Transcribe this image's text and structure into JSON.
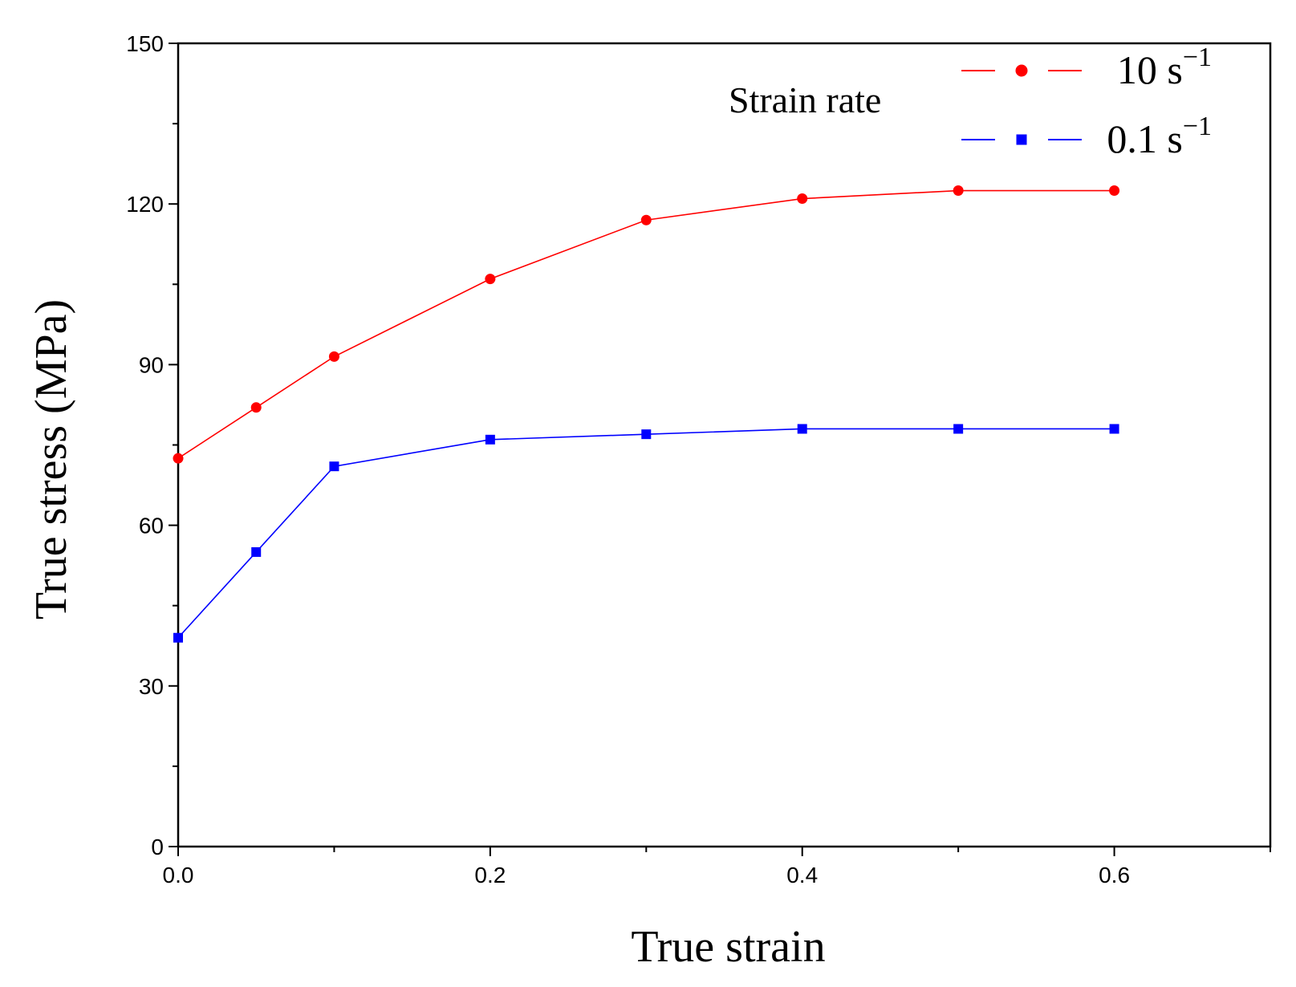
{
  "chart_data": {
    "type": "line",
    "title": "",
    "xlabel": "True strain",
    "ylabel": "True stress (MPa)",
    "xlim": [
      0,
      0.7
    ],
    "ylim": [
      0,
      150
    ],
    "xticks": [
      0.0,
      0.2,
      0.4,
      0.6
    ],
    "xtick_labels": [
      "0.0",
      "0.2",
      "0.4",
      "0.6"
    ],
    "yticks": [
      0,
      30,
      60,
      90,
      120,
      150
    ],
    "ytick_labels": [
      "0",
      "30",
      "60",
      "90",
      "120",
      "150"
    ],
    "legend": {
      "title": "Strain rate",
      "placement": "top-right"
    },
    "series": [
      {
        "name": "10 s⁻¹",
        "label_base": "10 s",
        "label_exp": "−1",
        "color": "#ff0000",
        "marker": "circle",
        "x": [
          0.0,
          0.05,
          0.1,
          0.2,
          0.3,
          0.4,
          0.5,
          0.6
        ],
        "values": [
          72.5,
          82,
          91.5,
          106,
          117,
          121,
          122.5,
          122.5
        ]
      },
      {
        "name": "0.1 s⁻¹",
        "label_base": "0.1 s",
        "label_exp": "−1",
        "color": "#0000ff",
        "marker": "square",
        "x": [
          0.0,
          0.05,
          0.1,
          0.2,
          0.3,
          0.4,
          0.5,
          0.6
        ],
        "values": [
          39,
          55,
          71,
          76,
          77,
          78,
          78,
          78
        ]
      }
    ]
  }
}
